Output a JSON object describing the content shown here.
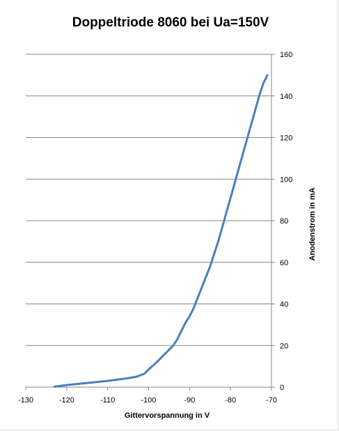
{
  "chart_data": {
    "type": "line",
    "title": "Doppeltriode 8060 bei Ua=150V",
    "xlabel": "Gittervorspannung in V",
    "ylabel": "Anodenstrom in mA",
    "xlim": [
      -130,
      -70
    ],
    "ylim": [
      0,
      160
    ],
    "x_ticks": [
      -130,
      -120,
      -110,
      -100,
      -90,
      -80,
      -70
    ],
    "y_ticks": [
      0,
      20,
      40,
      60,
      80,
      100,
      120,
      140,
      160
    ],
    "x_tick_labels": [
      "-130",
      "-120",
      "-110",
      "-100",
      "-90",
      "-80",
      "-70"
    ],
    "y_tick_labels": [
      "0",
      "20",
      "40",
      "60",
      "80",
      "100",
      "120",
      "140",
      "160"
    ],
    "y_axis_side": "right",
    "grid": "horizontal",
    "legend": "none",
    "series": [
      {
        "color": "#4a7ebb",
        "x": [
          -123,
          -120,
          -115,
          -110,
          -106,
          -103,
          -101,
          -100,
          -98,
          -96,
          -94,
          -93,
          -92,
          -91,
          -90,
          -89,
          -88,
          -87,
          -86,
          -85,
          -84,
          -83,
          -82,
          -81,
          -80,
          -79,
          -78,
          -77,
          -76,
          -75,
          -74,
          -73,
          -72,
          -71
        ],
        "y": [
          0.2,
          1,
          2,
          3,
          4,
          5,
          6.5,
          8.5,
          12,
          16,
          20,
          23,
          27,
          31,
          34,
          38,
          43,
          48,
          53,
          58,
          64,
          70,
          77,
          84,
          91,
          98,
          105,
          112,
          119,
          126,
          133,
          140,
          146,
          150
        ]
      }
    ]
  }
}
